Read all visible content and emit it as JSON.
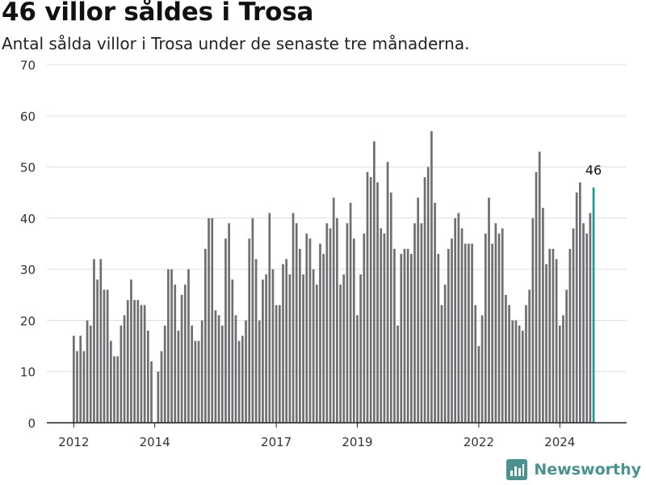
{
  "chart_data": {
    "type": "bar",
    "title": "46 villor såldes i Trosa",
    "subtitle": "Antal sålda villor i Trosa under de senaste tre månaderna.",
    "xlabel": "",
    "ylabel": "",
    "ylim": [
      0,
      70
    ],
    "y_ticks": [
      0,
      10,
      20,
      30,
      40,
      50,
      60,
      70
    ],
    "x_ticks": [
      {
        "label": "2012",
        "x": "2012-01"
      },
      {
        "label": "2014",
        "x": "2014-01"
      },
      {
        "label": "2017",
        "x": "2017-01"
      },
      {
        "label": "2019",
        "x": "2019-01"
      },
      {
        "label": "2022",
        "x": "2022-01"
      },
      {
        "label": "2024",
        "x": "2024-01"
      }
    ],
    "grid": true,
    "colors": {
      "bar": "#6e6e73",
      "highlight": "#1f9a8f",
      "grid": "#dddddd",
      "axis": "#222222"
    },
    "highlight_label": "46",
    "x": [
      "2012-01",
      "2012-02",
      "2012-03",
      "2012-04",
      "2012-05",
      "2012-06",
      "2012-07",
      "2012-08",
      "2012-09",
      "2012-10",
      "2012-11",
      "2012-12",
      "2013-01",
      "2013-02",
      "2013-03",
      "2013-04",
      "2013-05",
      "2013-06",
      "2013-07",
      "2013-08",
      "2013-09",
      "2013-10",
      "2013-11",
      "2013-12",
      "2014-01",
      "2014-02",
      "2014-03",
      "2014-04",
      "2014-05",
      "2014-06",
      "2014-07",
      "2014-08",
      "2014-09",
      "2014-10",
      "2014-11",
      "2014-12",
      "2015-01",
      "2015-02",
      "2015-03",
      "2015-04",
      "2015-05",
      "2015-06",
      "2015-07",
      "2015-08",
      "2015-09",
      "2015-10",
      "2015-11",
      "2015-12",
      "2016-01",
      "2016-02",
      "2016-03",
      "2016-04",
      "2016-05",
      "2016-06",
      "2016-07",
      "2016-08",
      "2016-09",
      "2016-10",
      "2016-11",
      "2016-12",
      "2017-01",
      "2017-02",
      "2017-03",
      "2017-04",
      "2017-05",
      "2017-06",
      "2017-07",
      "2017-08",
      "2017-09",
      "2017-10",
      "2017-11",
      "2017-12",
      "2018-01",
      "2018-02",
      "2018-03",
      "2018-04",
      "2018-05",
      "2018-06",
      "2018-07",
      "2018-08",
      "2018-09",
      "2018-10",
      "2018-11",
      "2018-12",
      "2019-01",
      "2019-02",
      "2019-03",
      "2019-04",
      "2019-05",
      "2019-06",
      "2019-07",
      "2019-08",
      "2019-09",
      "2019-10",
      "2019-11",
      "2019-12",
      "2020-01",
      "2020-02",
      "2020-03",
      "2020-04",
      "2020-05",
      "2020-06",
      "2020-07",
      "2020-08",
      "2020-09",
      "2020-10",
      "2020-11",
      "2020-12",
      "2021-01",
      "2021-02",
      "2021-03",
      "2021-04",
      "2021-05",
      "2021-06",
      "2021-07",
      "2021-08",
      "2021-09",
      "2021-10",
      "2021-11",
      "2021-12",
      "2022-01",
      "2022-02",
      "2022-03",
      "2022-04",
      "2022-05",
      "2022-06",
      "2022-07",
      "2022-08",
      "2022-09",
      "2022-10",
      "2022-11",
      "2022-12",
      "2023-01",
      "2023-02",
      "2023-03",
      "2023-04",
      "2023-05",
      "2023-06",
      "2023-07",
      "2023-08",
      "2023-09",
      "2023-10",
      "2023-11",
      "2023-12",
      "2024-01",
      "2024-02",
      "2024-03",
      "2024-04",
      "2024-05",
      "2024-06",
      "2024-07",
      "2024-08",
      "2024-09",
      "2024-10",
      "2024-11"
    ],
    "values": [
      17,
      14,
      17,
      14,
      20,
      19,
      32,
      28,
      32,
      26,
      26,
      16,
      13,
      13,
      19,
      21,
      24,
      28,
      24,
      24,
      23,
      23,
      18,
      12,
      0,
      10,
      14,
      19,
      30,
      30,
      27,
      18,
      25,
      27,
      30,
      19,
      16,
      16,
      20,
      34,
      40,
      40,
      22,
      21,
      19,
      36,
      39,
      28,
      21,
      16,
      17,
      20,
      36,
      40,
      32,
      20,
      28,
      29,
      41,
      30,
      23,
      23,
      31,
      32,
      29,
      41,
      39,
      34,
      29,
      37,
      36,
      30,
      27,
      35,
      33,
      39,
      38,
      44,
      40,
      27,
      29,
      39,
      43,
      36,
      21,
      29,
      37,
      49,
      48,
      55,
      47,
      38,
      37,
      51,
      45,
      34,
      19,
      33,
      34,
      34,
      33,
      39,
      44,
      39,
      48,
      50,
      57,
      43,
      33,
      23,
      27,
      34,
      36,
      40,
      41,
      38,
      35,
      35,
      35,
      23,
      15,
      21,
      37,
      44,
      35,
      39,
      37,
      38,
      25,
      23,
      20,
      20,
      19,
      18,
      23,
      26,
      40,
      49,
      53,
      42,
      31,
      34,
      34,
      32,
      19,
      21,
      26,
      34,
      38,
      45,
      47,
      39,
      37,
      41,
      46
    ]
  },
  "brand": {
    "name": "Newsworthy",
    "icon": "bar-chart-logo-icon"
  }
}
